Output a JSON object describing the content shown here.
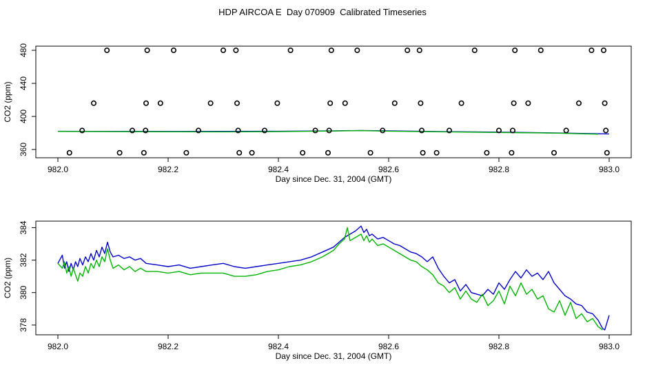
{
  "figure": {
    "title": "HDP AIRCOA E  Day 070909  Calibrated Timeseries",
    "colors": {
      "series_blue": "#0000cc",
      "series_green": "#00b400",
      "points": "#000000"
    }
  },
  "chart_data": [
    {
      "type": "scatter",
      "xlabel": "Day since Dec. 31, 2004 (GMT)",
      "ylabel": "CO2 (ppm)",
      "xlim": [
        982.0,
        983.0
      ],
      "ylim": [
        350,
        485
      ],
      "xticks": [
        982.0,
        982.2,
        982.4,
        982.6,
        982.8,
        983.0
      ],
      "xtick_labels": [
        "982.0",
        "982.2",
        "982.4",
        "982.6",
        "982.8",
        "983.0"
      ],
      "yticks": [
        360,
        400,
        440,
        480
      ],
      "ytick_labels": [
        "360",
        "400",
        "440",
        "480"
      ],
      "points": [
        {
          "x": 982.021,
          "y": 356
        },
        {
          "x": 982.044,
          "y": 383
        },
        {
          "x": 982.065,
          "y": 416
        },
        {
          "x": 982.089,
          "y": 480
        },
        {
          "x": 982.112,
          "y": 356
        },
        {
          "x": 982.135,
          "y": 383
        },
        {
          "x": 982.156,
          "y": 356
        },
        {
          "x": 982.159,
          "y": 383
        },
        {
          "x": 982.16,
          "y": 416
        },
        {
          "x": 982.162,
          "y": 480
        },
        {
          "x": 982.186,
          "y": 416
        },
        {
          "x": 982.21,
          "y": 480
        },
        {
          "x": 982.233,
          "y": 356
        },
        {
          "x": 982.255,
          "y": 383
        },
        {
          "x": 982.277,
          "y": 416
        },
        {
          "x": 982.3,
          "y": 480
        },
        {
          "x": 982.323,
          "y": 480
        },
        {
          "x": 982.325,
          "y": 416
        },
        {
          "x": 982.327,
          "y": 383
        },
        {
          "x": 982.329,
          "y": 356
        },
        {
          "x": 982.352,
          "y": 356
        },
        {
          "x": 982.375,
          "y": 383
        },
        {
          "x": 982.398,
          "y": 416
        },
        {
          "x": 982.422,
          "y": 480
        },
        {
          "x": 982.444,
          "y": 356
        },
        {
          "x": 982.467,
          "y": 383
        },
        {
          "x": 982.49,
          "y": 356
        },
        {
          "x": 982.492,
          "y": 383
        },
        {
          "x": 982.494,
          "y": 416
        },
        {
          "x": 982.496,
          "y": 480
        },
        {
          "x": 982.521,
          "y": 416
        },
        {
          "x": 982.543,
          "y": 480
        },
        {
          "x": 982.567,
          "y": 356
        },
        {
          "x": 982.589,
          "y": 383
        },
        {
          "x": 982.611,
          "y": 416
        },
        {
          "x": 982.634,
          "y": 480
        },
        {
          "x": 982.656,
          "y": 480
        },
        {
          "x": 982.658,
          "y": 416
        },
        {
          "x": 982.66,
          "y": 383
        },
        {
          "x": 982.662,
          "y": 356
        },
        {
          "x": 982.687,
          "y": 356
        },
        {
          "x": 982.71,
          "y": 383
        },
        {
          "x": 982.732,
          "y": 416
        },
        {
          "x": 982.756,
          "y": 480
        },
        {
          "x": 982.778,
          "y": 356
        },
        {
          "x": 982.8,
          "y": 383
        },
        {
          "x": 982.823,
          "y": 356
        },
        {
          "x": 982.825,
          "y": 383
        },
        {
          "x": 982.827,
          "y": 416
        },
        {
          "x": 982.829,
          "y": 480
        },
        {
          "x": 982.853,
          "y": 416
        },
        {
          "x": 982.876,
          "y": 480
        },
        {
          "x": 982.9,
          "y": 356
        },
        {
          "x": 982.922,
          "y": 383
        },
        {
          "x": 982.945,
          "y": 416
        },
        {
          "x": 982.968,
          "y": 480
        },
        {
          "x": 982.99,
          "y": 480
        },
        {
          "x": 982.992,
          "y": 416
        },
        {
          "x": 982.994,
          "y": 383
        },
        {
          "x": 982.996,
          "y": 356
        }
      ],
      "series": [
        {
          "name": "blue",
          "color": "#0000cc",
          "x": [
            982.0,
            982.1,
            982.2,
            982.3,
            982.4,
            982.5,
            982.55,
            982.6,
            982.7,
            982.8,
            982.9,
            983.0
          ],
          "values": [
            382.0,
            381.9,
            381.8,
            381.9,
            382.0,
            382.5,
            383.0,
            382.5,
            381.6,
            381.0,
            380.0,
            378.8
          ]
        },
        {
          "name": "green",
          "color": "#00b400",
          "x": [
            982.0,
            982.1,
            982.2,
            982.3,
            982.4,
            982.5,
            982.55,
            982.6,
            982.7,
            982.8,
            982.9,
            982.98
          ],
          "values": [
            381.8,
            381.6,
            381.4,
            381.3,
            381.6,
            382.3,
            382.8,
            382.2,
            381.3,
            380.6,
            379.8,
            378.5
          ]
        }
      ]
    },
    {
      "type": "line",
      "xlabel": "Day since Dec. 31, 2004 (GMT)",
      "ylabel": "CO2 (ppm)",
      "xlim": [
        982.0,
        983.0
      ],
      "ylim": [
        377.4,
        384.4
      ],
      "xticks": [
        982.0,
        982.2,
        982.4,
        982.6,
        982.8,
        983.0
      ],
      "xtick_labels": [
        "982.0",
        "982.2",
        "982.4",
        "982.6",
        "982.8",
        "983.0"
      ],
      "yticks": [
        378,
        380,
        382,
        384
      ],
      "ytick_labels": [
        "378",
        "380",
        "382",
        "384"
      ],
      "series": [
        {
          "name": "blue",
          "color": "#0000cc",
          "x": [
            982.0,
            982.008,
            982.012,
            982.016,
            982.02,
            982.024,
            982.028,
            982.032,
            982.036,
            982.04,
            982.045,
            982.05,
            982.055,
            982.06,
            982.065,
            982.07,
            982.075,
            982.08,
            982.085,
            982.09,
            982.095,
            982.1,
            982.11,
            982.12,
            982.13,
            982.14,
            982.15,
            982.16,
            982.18,
            982.2,
            982.22,
            982.24,
            982.26,
            982.28,
            982.3,
            982.32,
            982.34,
            982.36,
            982.38,
            982.4,
            982.42,
            982.44,
            982.46,
            982.48,
            982.5,
            982.51,
            982.52,
            982.53,
            982.54,
            982.55,
            982.555,
            982.56,
            982.565,
            982.57,
            982.58,
            982.59,
            982.6,
            982.61,
            982.62,
            982.63,
            982.64,
            982.65,
            982.66,
            982.67,
            982.68,
            982.69,
            982.7,
            982.71,
            982.72,
            982.73,
            982.74,
            982.75,
            982.76,
            982.77,
            982.78,
            982.79,
            982.8,
            982.81,
            982.82,
            982.83,
            982.84,
            982.85,
            982.86,
            982.87,
            982.88,
            982.89,
            982.9,
            982.91,
            982.92,
            982.93,
            982.94,
            982.95,
            982.96,
            982.97,
            982.98,
            982.988,
            982.992,
            983.0
          ],
          "values": [
            381.8,
            382.3,
            381.5,
            381.9,
            381.3,
            381.8,
            381.4,
            381.9,
            381.6,
            382.1,
            381.7,
            382.2,
            381.9,
            382.4,
            382.0,
            382.6,
            382.2,
            382.8,
            382.4,
            383.1,
            382.5,
            382.2,
            382.3,
            382.1,
            382.2,
            382.0,
            382.1,
            381.8,
            381.7,
            381.6,
            381.7,
            381.5,
            381.6,
            381.7,
            381.8,
            381.6,
            381.5,
            381.6,
            381.7,
            381.8,
            381.9,
            382.0,
            382.2,
            382.5,
            382.8,
            383.1,
            383.4,
            383.6,
            383.8,
            384.1,
            383.7,
            383.9,
            383.5,
            383.6,
            383.3,
            383.4,
            383.2,
            383.0,
            382.9,
            382.7,
            382.5,
            382.4,
            382.2,
            381.9,
            382.2,
            381.5,
            381.0,
            380.6,
            380.8,
            380.1,
            380.5,
            380.0,
            379.9,
            379.8,
            380.2,
            379.9,
            380.6,
            380.2,
            380.8,
            381.3,
            380.9,
            381.4,
            381.0,
            381.2,
            380.8,
            381.3,
            380.6,
            380.2,
            379.8,
            379.6,
            379.3,
            379.2,
            378.8,
            378.7,
            378.3,
            377.8,
            377.7,
            378.6
          ]
        },
        {
          "name": "green",
          "color": "#00b400",
          "x": [
            982.0,
            982.008,
            982.012,
            982.016,
            982.02,
            982.024,
            982.028,
            982.032,
            982.036,
            982.04,
            982.045,
            982.05,
            982.055,
            982.06,
            982.065,
            982.07,
            982.075,
            982.08,
            982.085,
            982.09,
            982.095,
            982.1,
            982.11,
            982.12,
            982.13,
            982.14,
            982.15,
            982.16,
            982.18,
            982.2,
            982.22,
            982.24,
            982.26,
            982.28,
            982.3,
            982.32,
            982.34,
            982.36,
            982.38,
            982.4,
            982.42,
            982.44,
            982.46,
            982.48,
            982.5,
            982.51,
            982.52,
            982.525,
            982.53,
            982.54,
            982.55,
            982.555,
            982.56,
            982.565,
            982.57,
            982.58,
            982.59,
            982.6,
            982.61,
            982.62,
            982.63,
            982.64,
            982.65,
            982.66,
            982.67,
            982.68,
            982.69,
            982.7,
            982.71,
            982.72,
            982.73,
            982.74,
            982.75,
            982.76,
            982.77,
            982.78,
            982.79,
            982.8,
            982.81,
            982.82,
            982.83,
            982.84,
            982.85,
            982.86,
            982.87,
            982.88,
            982.89,
            982.9,
            982.91,
            982.92,
            982.93,
            982.94,
            982.95,
            982.96,
            982.97,
            982.98,
            982.988
          ],
          "values": [
            381.8,
            381.5,
            381.9,
            381.2,
            381.6,
            381.0,
            381.5,
            381.1,
            380.7,
            381.2,
            381.0,
            381.6,
            381.2,
            381.8,
            381.5,
            382.0,
            381.6,
            382.2,
            381.9,
            382.7,
            382.0,
            381.5,
            381.7,
            381.4,
            381.6,
            381.3,
            381.5,
            381.3,
            381.3,
            381.2,
            381.3,
            381.1,
            381.2,
            381.2,
            381.2,
            381.0,
            381.0,
            381.1,
            381.3,
            381.4,
            381.6,
            381.7,
            381.9,
            382.2,
            382.6,
            383.0,
            383.3,
            384.0,
            383.2,
            383.4,
            383.6,
            383.2,
            383.5,
            383.1,
            383.3,
            382.9,
            383.0,
            382.8,
            382.6,
            382.4,
            382.2,
            382.0,
            381.9,
            381.6,
            381.4,
            381.1,
            380.6,
            380.4,
            380.0,
            380.3,
            379.6,
            380.1,
            379.6,
            379.4,
            379.9,
            379.2,
            379.5,
            380.1,
            379.3,
            380.4,
            379.8,
            380.6,
            379.9,
            380.2,
            379.6,
            379.8,
            379.0,
            378.8,
            379.5,
            378.6,
            379.4,
            378.4,
            378.7,
            378.2,
            378.4,
            377.9,
            377.7
          ]
        }
      ]
    }
  ]
}
